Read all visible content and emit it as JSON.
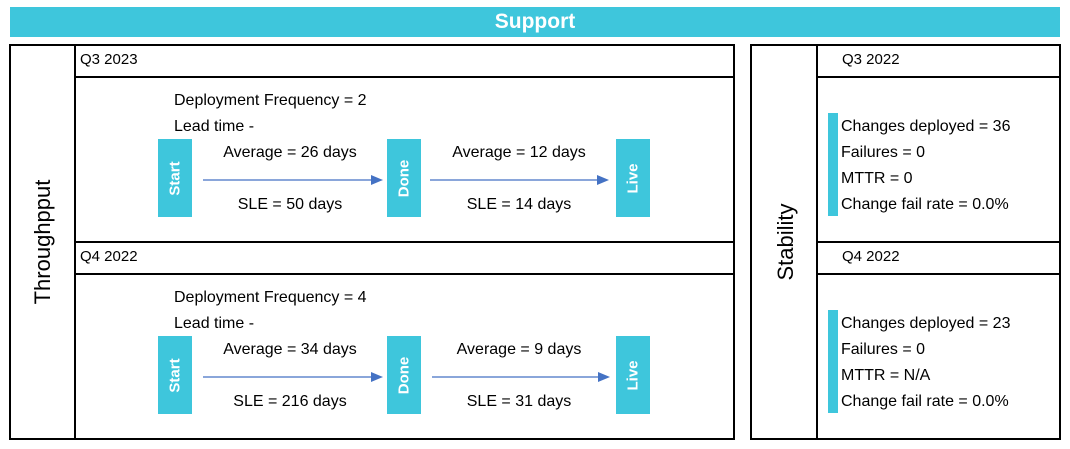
{
  "title": "Support",
  "throughput": {
    "label": "Throughpput",
    "periods": [
      {
        "quarter": "Q3 2023",
        "deployment_frequency": "Deployment Frequency = 2",
        "lead_time": "Lead time -",
        "stages": [
          "Start",
          "Done",
          "Live"
        ],
        "segment1": {
          "average": "Average = 26 days",
          "sle": "SLE = 50 days"
        },
        "segment2": {
          "average": "Average = 12 days",
          "sle": "SLE = 14 days"
        }
      },
      {
        "quarter": "Q4 2022",
        "deployment_frequency": "Deployment Frequency = 4",
        "lead_time": "Lead time -",
        "stages": [
          "Start",
          "Done",
          "Live"
        ],
        "segment1": {
          "average": "Average = 34 days",
          "sle": "SLE = 216 days"
        },
        "segment2": {
          "average": "Average = 9 days",
          "sle": "SLE = 31 days"
        }
      }
    ]
  },
  "stability": {
    "label": "Stability",
    "periods": [
      {
        "quarter": "Q3 2022",
        "changes_deployed": "Changes deployed = 36",
        "failures": "Failures = 0",
        "mttr": "MTTR = 0",
        "change_fail_rate": "Change fail rate = 0.0%"
      },
      {
        "quarter": "Q4 2022",
        "changes_deployed": "Changes deployed = 23",
        "failures": "Failures = 0",
        "mttr": "MTTR = N/A",
        "change_fail_rate": "Change fail rate = 0.0%"
      }
    ]
  },
  "colors": {
    "accent": "#3ec6dc",
    "arrow": "#4472c4",
    "border": "#000000"
  }
}
